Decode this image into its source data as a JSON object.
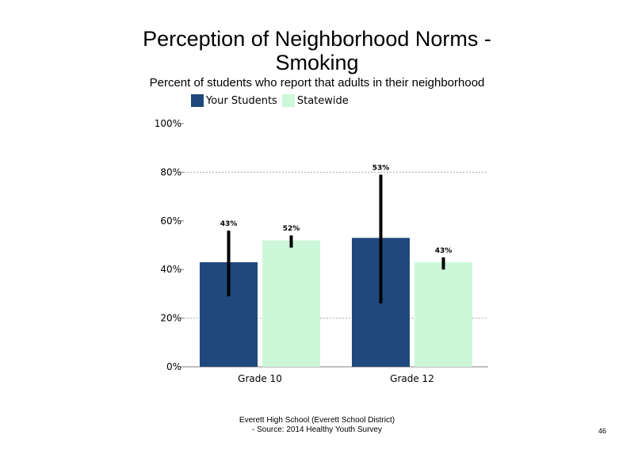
{
  "slide": {
    "title_line1": "Perception of Neighborhood Norms -",
    "title_line2": "Smoking",
    "subtitle": "Percent of students who report that adults in their neighborhood",
    "footer_line1": "Everett High School (Everett School District)",
    "footer_line2": "- Source: 2014 Healthy Youth Survey",
    "page_number": "46"
  },
  "chart_data": {
    "type": "bar",
    "categories": [
      "Grade 10",
      "Grade 12"
    ],
    "series": [
      {
        "name": "Your Students",
        "color": "#1f497d",
        "values": [
          43,
          53
        ],
        "labels": [
          "43%",
          "53%"
        ],
        "error_low": [
          29,
          26
        ],
        "error_high": [
          56,
          79
        ]
      },
      {
        "name": "Statewide",
        "color": "#ccf8d9",
        "values": [
          52,
          43
        ],
        "labels": [
          "52%",
          "43%"
        ],
        "error_low": [
          49,
          40
        ],
        "error_high": [
          54,
          45
        ]
      }
    ],
    "ylim": [
      0,
      100
    ],
    "yticks": [
      0,
      20,
      40,
      60,
      80,
      100
    ],
    "ytick_labels": [
      "0%",
      "20%",
      "40%",
      "60%",
      "80%",
      "100%"
    ],
    "gridlines": [
      20,
      80
    ],
    "legend_position": "top-left",
    "xlabel": "",
    "ylabel": ""
  }
}
